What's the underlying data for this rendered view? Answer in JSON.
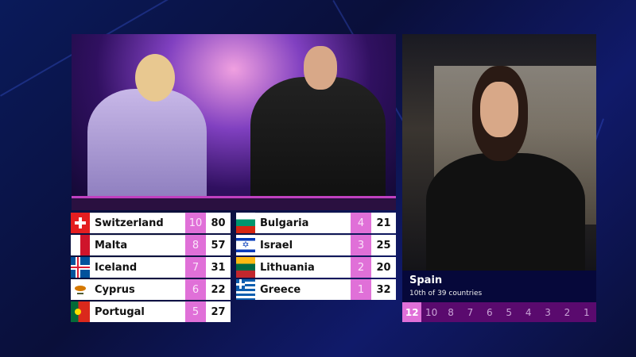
{
  "scoreboard": {
    "left": [
      {
        "country": "Switzerland",
        "flag": "switzerland-flag",
        "points": "10",
        "total": "80"
      },
      {
        "country": "Malta",
        "flag": "malta-flag",
        "points": "8",
        "total": "57"
      },
      {
        "country": "Iceland",
        "flag": "iceland-flag",
        "points": "7",
        "total": "31"
      },
      {
        "country": "Cyprus",
        "flag": "cyprus-flag",
        "points": "6",
        "total": "22"
      },
      {
        "country": "Portugal",
        "flag": "portugal-flag",
        "points": "5",
        "total": "27"
      }
    ],
    "right": [
      {
        "country": "Bulgaria",
        "flag": "bulgaria-flag",
        "points": "4",
        "total": "21"
      },
      {
        "country": "Israel",
        "flag": "israel-flag",
        "points": "3",
        "total": "25"
      },
      {
        "country": "Lithuania",
        "flag": "lithuania-flag",
        "points": "2",
        "total": "20"
      },
      {
        "country": "Greece",
        "flag": "greece-flag",
        "points": "1",
        "total": "32"
      }
    ]
  },
  "spokesperson": {
    "country": "Spain",
    "rank": "10th of 39 countries",
    "points_bar": [
      "12",
      "10",
      "8",
      "7",
      "6",
      "5",
      "4",
      "3",
      "2",
      "1"
    ],
    "points_given": [
      "12"
    ]
  },
  "colors": {
    "points_pink": "#e070d8",
    "bar_purple": "#5a0a6e",
    "info_navy": "#06083a"
  }
}
